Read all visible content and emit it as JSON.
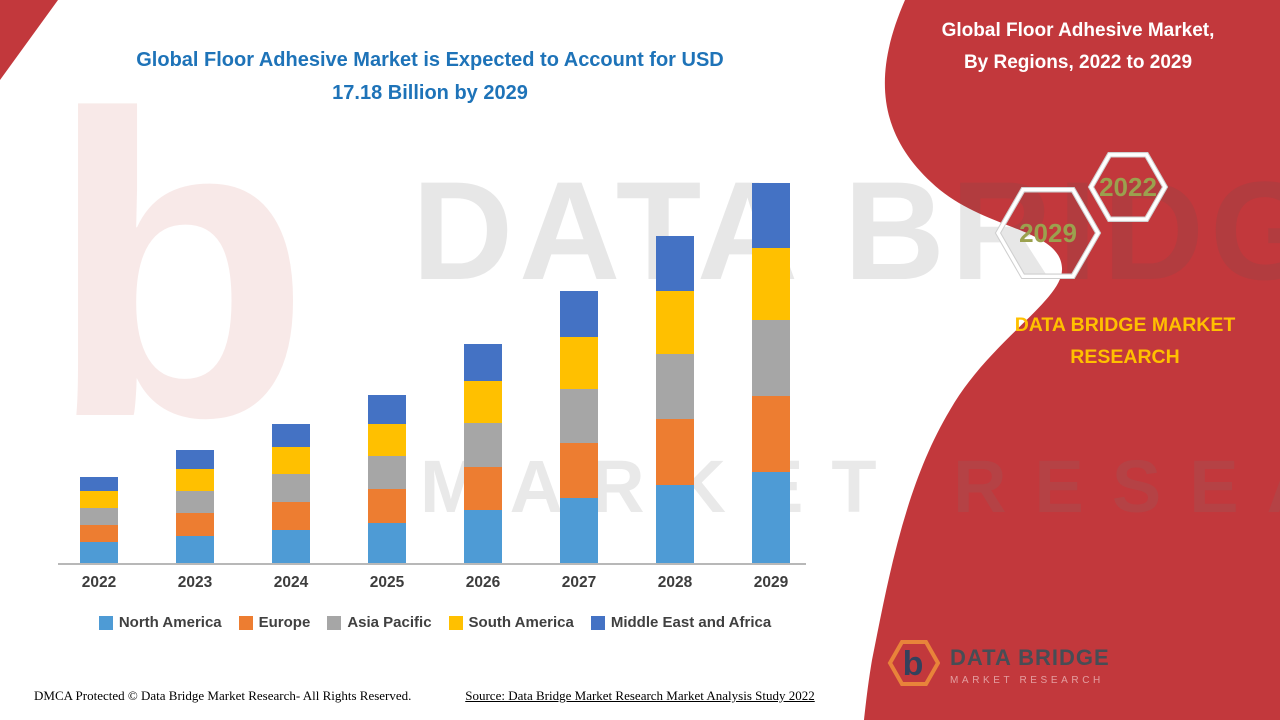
{
  "colors": {
    "accent_red": "#C2383C",
    "title_blue": "#1E73B8",
    "brand_yellow": "#FFC000",
    "hex_label_olive": "#9BA14E"
  },
  "main_title": {
    "line1": "Global Floor Adhesive Market is Expected to Account for USD",
    "line2": "17.18 Billion by 2029"
  },
  "side_panel": {
    "title_line1": "Global Floor Adhesive Market,",
    "title_line2": "By Regions, 2022 to 2029",
    "hexagons": [
      {
        "label": "2022"
      },
      {
        "label": "2029"
      }
    ],
    "brand_line1": "DATA BRIDGE MARKET",
    "brand_line2": "RESEARCH"
  },
  "watermark": {
    "monogram": "b",
    "line1": "DATA BRIDGE",
    "line2": "MARKET RESEARCH"
  },
  "logo": {
    "title": "DATA BRIDGE",
    "subtitle": "MARKET RESEARCH",
    "monogram": "b"
  },
  "footer": {
    "dmca": "DMCA Protected © Data Bridge Market Research- All Rights Reserved.",
    "source": "Source: Data Bridge Market Research Market Analysis Study 2022"
  },
  "chart_data": {
    "type": "bar",
    "stacked": true,
    "title": "Global Floor Adhesive Market, By Regions, 2022 to 2029",
    "value_unit": "USD Billion",
    "categories": [
      "2022",
      "2023",
      "2024",
      "2025",
      "2026",
      "2027",
      "2028",
      "2029"
    ],
    "series": [
      {
        "name": "North America",
        "color": "#4E9BD5",
        "values": [
          0.94,
          1.22,
          1.51,
          1.82,
          2.38,
          2.95,
          3.55,
          4.12
        ]
      },
      {
        "name": "Europe",
        "color": "#ED7D31",
        "values": [
          0.78,
          1.02,
          1.26,
          1.52,
          1.98,
          2.46,
          2.96,
          3.44
        ]
      },
      {
        "name": "Asia Pacific",
        "color": "#A6A6A6",
        "values": [
          0.78,
          1.02,
          1.26,
          1.52,
          1.98,
          2.46,
          2.96,
          3.44
        ]
      },
      {
        "name": "South America",
        "color": "#FFC000",
        "values": [
          0.74,
          0.97,
          1.2,
          1.44,
          1.88,
          2.34,
          2.81,
          3.26
        ]
      },
      {
        "name": "Middle East and Africa",
        "color": "#4472C4",
        "values": [
          0.66,
          0.87,
          1.07,
          1.29,
          1.68,
          2.09,
          2.52,
          2.92
        ]
      }
    ],
    "totals": [
      3.9,
      5.1,
      6.3,
      7.59,
      9.9,
      12.3,
      14.8,
      17.18
    ],
    "ylim": [
      0,
      17.18
    ],
    "grid": false,
    "legend_position": "bottom",
    "values_estimated": true
  }
}
